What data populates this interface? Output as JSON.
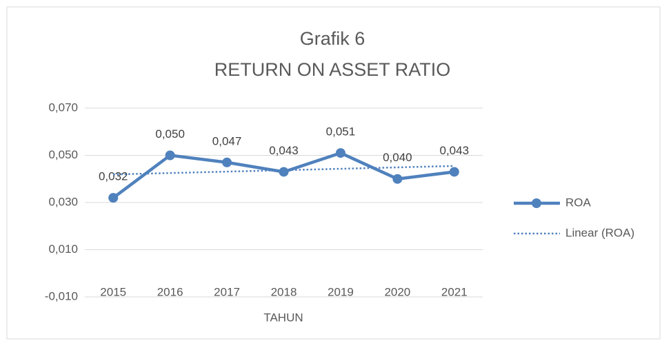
{
  "chart_data": {
    "type": "line",
    "title": "Grafik 6",
    "subtitle": "RETURN ON ASSET RATIO",
    "x_label": "TAHUN",
    "categories": [
      "2015",
      "2016",
      "2017",
      "2018",
      "2019",
      "2020",
      "2021"
    ],
    "series": [
      {
        "name": "ROA",
        "color": "#4f81bd",
        "style": "solid",
        "markers": true,
        "values": [
          0.032,
          0.05,
          0.047,
          0.043,
          0.051,
          0.04,
          0.043
        ],
        "value_labels": [
          "0,032",
          "0,050",
          "0,047",
          "0,043",
          "0,051",
          "0,040",
          "0,043"
        ]
      },
      {
        "name": "Linear (ROA)",
        "color": "#4f81bd",
        "style": "dotted",
        "markers": false,
        "values": [
          0.0419,
          0.0425,
          0.0431,
          0.0437,
          0.0443,
          0.0449,
          0.0455
        ]
      }
    ],
    "ylim": [
      -0.01,
      0.07
    ],
    "yticks": [
      {
        "value": -0.01,
        "label": "-0,010"
      },
      {
        "value": 0.01,
        "label": "0,010"
      },
      {
        "value": 0.03,
        "label": "0,030"
      },
      {
        "value": 0.05,
        "label": "0,050"
      },
      {
        "value": 0.07,
        "label": "0,070"
      }
    ],
    "grid": true,
    "legend": "right"
  }
}
